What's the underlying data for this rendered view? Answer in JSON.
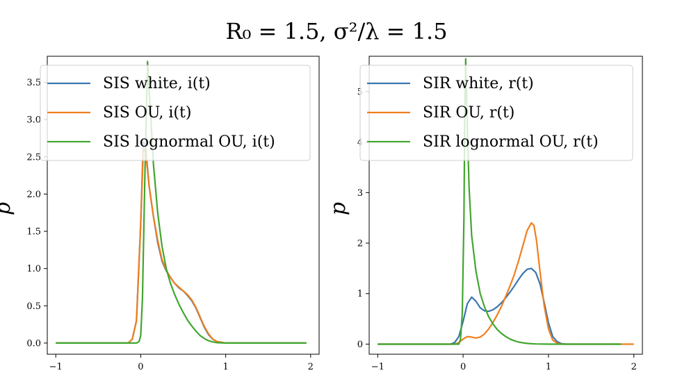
{
  "suptitle": "R₀ = 1.5, σ²/λ = 1.5",
  "chart_data": [
    {
      "type": "line",
      "ylabel": "p",
      "xlim": [
        -1.1,
        2.1
      ],
      "ylim": [
        -0.15,
        3.85
      ],
      "xticks": [
        -1,
        0,
        1,
        2
      ],
      "xtick_labels": [
        "−1",
        "0",
        "1",
        "2"
      ],
      "yticks": [
        0.0,
        0.5,
        1.0,
        1.5,
        2.0,
        2.5,
        3.0,
        3.5
      ],
      "ytick_labels": [
        "0.0",
        "0.5",
        "1.0",
        "1.5",
        "2.0",
        "2.5",
        "3.0",
        "3.5"
      ],
      "legend_position": "top",
      "grid": false,
      "series": [
        {
          "name": "SIS white, i(t)",
          "color": "#3a75b0",
          "x": [
            -1.0,
            -0.15,
            -0.1,
            -0.05,
            0.0,
            0.03,
            0.06,
            0.1,
            0.15,
            0.2,
            0.25,
            0.3,
            0.35,
            0.4,
            0.45,
            0.5,
            0.55,
            0.6,
            0.65,
            0.7,
            0.75,
            0.8,
            0.85,
            0.9,
            0.95,
            1.0,
            1.05,
            1.95
          ],
          "y": [
            0.0,
            0.0,
            0.05,
            0.3,
            1.6,
            2.7,
            2.6,
            2.1,
            1.7,
            1.35,
            1.1,
            0.97,
            0.88,
            0.8,
            0.74,
            0.7,
            0.64,
            0.57,
            0.47,
            0.34,
            0.21,
            0.11,
            0.05,
            0.02,
            0.01,
            0.0,
            0.0,
            0.0
          ]
        },
        {
          "name": "SIS OU, i(t)",
          "color": "#ef7f1d",
          "x": [
            -1.0,
            -0.15,
            -0.1,
            -0.05,
            0.0,
            0.03,
            0.06,
            0.1,
            0.15,
            0.2,
            0.25,
            0.3,
            0.35,
            0.4,
            0.45,
            0.5,
            0.55,
            0.6,
            0.65,
            0.7,
            0.75,
            0.8,
            0.85,
            0.9,
            0.95,
            1.0,
            1.05,
            1.95
          ],
          "y": [
            0.0,
            0.0,
            0.05,
            0.3,
            1.6,
            2.62,
            2.55,
            2.1,
            1.7,
            1.38,
            1.12,
            0.98,
            0.88,
            0.8,
            0.75,
            0.7,
            0.65,
            0.58,
            0.48,
            0.35,
            0.22,
            0.12,
            0.05,
            0.02,
            0.01,
            0.0,
            0.0,
            0.0
          ]
        },
        {
          "name": "SIS lognormal OU, i(t)",
          "color": "#41a62f",
          "x": [
            -1.0,
            -0.05,
            -0.02,
            0.0,
            0.02,
            0.05,
            0.08,
            0.11,
            0.15,
            0.2,
            0.25,
            0.3,
            0.35,
            0.4,
            0.45,
            0.5,
            0.55,
            0.6,
            0.65,
            0.7,
            0.75,
            0.8,
            0.85,
            0.9,
            1.0,
            1.95
          ],
          "y": [
            0.0,
            0.0,
            0.02,
            0.1,
            0.6,
            2.3,
            3.78,
            3.2,
            2.4,
            1.75,
            1.3,
            1.0,
            0.8,
            0.65,
            0.52,
            0.41,
            0.31,
            0.23,
            0.16,
            0.1,
            0.06,
            0.03,
            0.015,
            0.005,
            0.0,
            0.0
          ]
        }
      ]
    },
    {
      "type": "line",
      "ylabel": "p",
      "xlim": [
        -1.1,
        2.1
      ],
      "ylim": [
        -0.2,
        5.7
      ],
      "xticks": [
        -1,
        0,
        1,
        2
      ],
      "xtick_labels": [
        "−1",
        "0",
        "1",
        "2"
      ],
      "yticks": [
        0,
        1,
        2,
        3,
        4,
        5
      ],
      "ytick_labels": [
        "0",
        "1",
        "2",
        "3",
        "4",
        "5"
      ],
      "legend_position": "top",
      "grid": false,
      "series": [
        {
          "name": "SIR white, r(t)",
          "color": "#3a75b0",
          "x": [
            -1.0,
            -0.15,
            -0.1,
            -0.05,
            0.0,
            0.05,
            0.1,
            0.15,
            0.2,
            0.25,
            0.3,
            0.35,
            0.4,
            0.45,
            0.5,
            0.55,
            0.6,
            0.65,
            0.7,
            0.75,
            0.8,
            0.85,
            0.9,
            0.95,
            1.0,
            1.05,
            1.1,
            1.15,
            1.2,
            1.85
          ],
          "y": [
            0.0,
            0.0,
            0.03,
            0.15,
            0.45,
            0.8,
            0.93,
            0.85,
            0.72,
            0.66,
            0.65,
            0.68,
            0.74,
            0.82,
            0.92,
            1.03,
            1.15,
            1.28,
            1.4,
            1.48,
            1.5,
            1.42,
            1.2,
            0.82,
            0.42,
            0.15,
            0.05,
            0.01,
            0.0,
            0.0
          ]
        },
        {
          "name": "SIR OU, r(t)",
          "color": "#ef7f1d",
          "x": [
            -1.0,
            -0.1,
            -0.05,
            0.0,
            0.05,
            0.1,
            0.15,
            0.2,
            0.25,
            0.3,
            0.35,
            0.4,
            0.45,
            0.5,
            0.55,
            0.6,
            0.65,
            0.7,
            0.75,
            0.8,
            0.83,
            0.86,
            0.9,
            0.95,
            1.0,
            1.05,
            1.1,
            1.15,
            2.0
          ],
          "y": [
            0.0,
            0.0,
            0.03,
            0.1,
            0.15,
            0.14,
            0.12,
            0.14,
            0.2,
            0.3,
            0.43,
            0.58,
            0.75,
            0.95,
            1.15,
            1.38,
            1.65,
            1.95,
            2.25,
            2.4,
            2.35,
            2.05,
            1.45,
            0.75,
            0.3,
            0.08,
            0.02,
            0.0,
            0.0
          ]
        },
        {
          "name": "SIR lognormal OU, r(t)",
          "color": "#41a62f",
          "x": [
            -1.0,
            -0.05,
            -0.03,
            -0.01,
            0.01,
            0.02,
            0.03,
            0.05,
            0.07,
            0.1,
            0.15,
            0.2,
            0.25,
            0.3,
            0.35,
            0.4,
            0.45,
            0.5,
            0.55,
            0.6,
            0.65,
            0.7,
            0.75,
            0.8,
            0.85,
            0.9,
            0.95,
            1.0,
            1.85
          ],
          "y": [
            0.0,
            0.0,
            0.1,
            0.6,
            2.5,
            4.5,
            5.65,
            4.3,
            3.1,
            2.15,
            1.45,
            1.0,
            0.74,
            0.54,
            0.4,
            0.29,
            0.21,
            0.15,
            0.1,
            0.065,
            0.04,
            0.025,
            0.015,
            0.008,
            0.004,
            0.002,
            0.001,
            0.0,
            0.0
          ]
        }
      ]
    }
  ]
}
